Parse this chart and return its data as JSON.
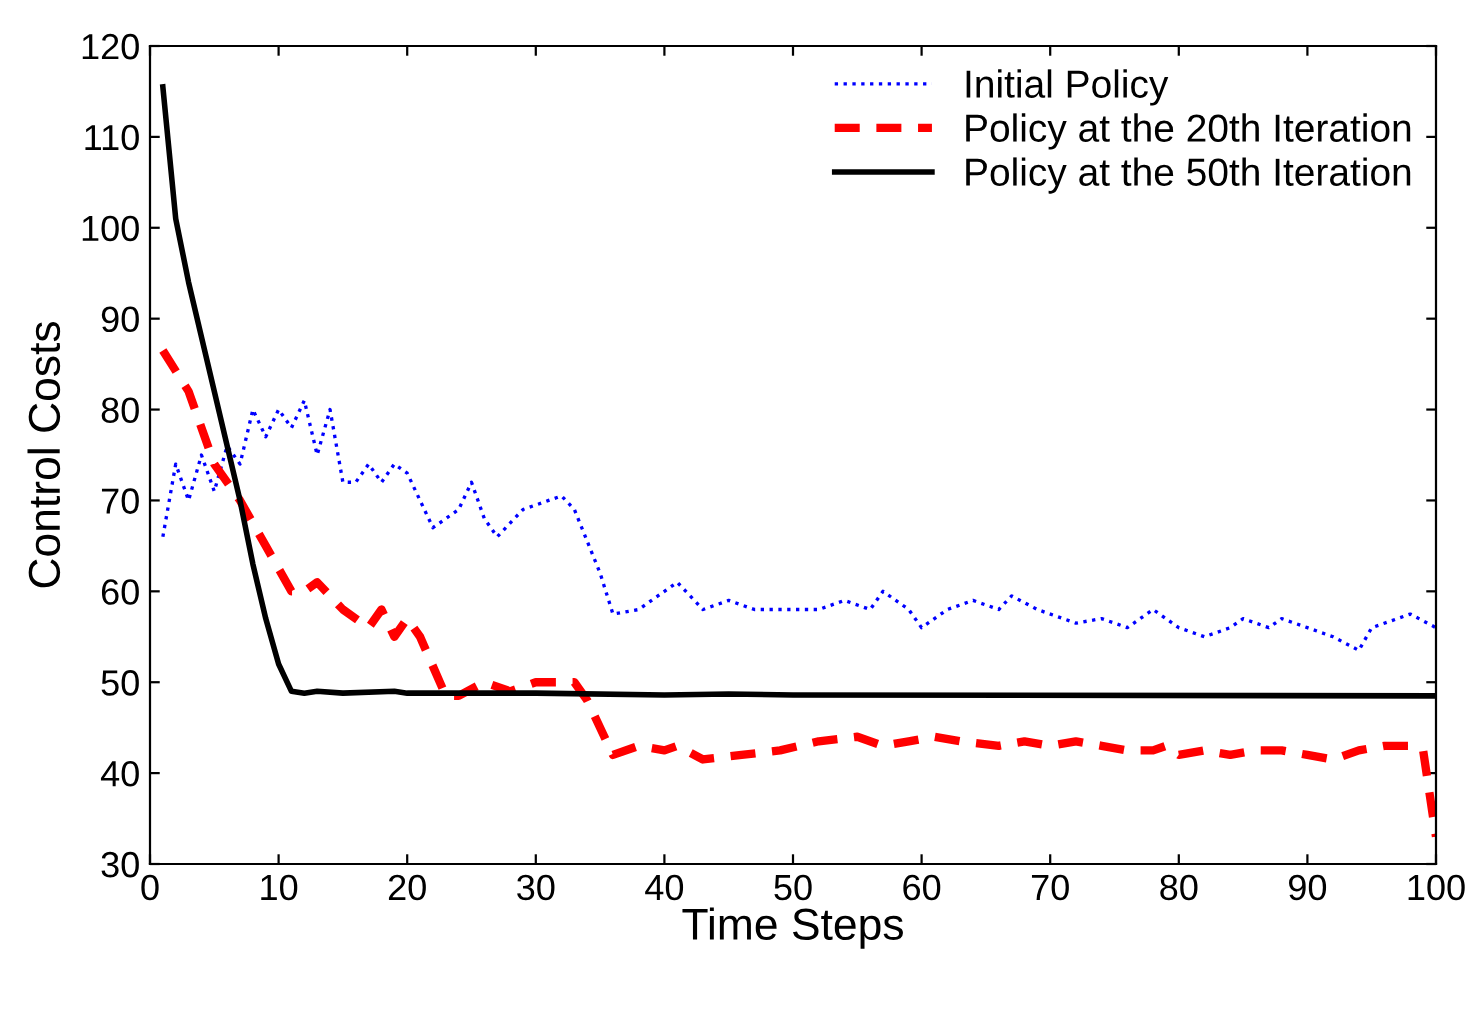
{
  "chart_data": {
    "type": "line",
    "xlabel": "Time Steps",
    "ylabel": "Control Costs",
    "xlim": [
      0,
      100
    ],
    "ylim": [
      30,
      120
    ],
    "xticks": [
      0,
      10,
      20,
      30,
      40,
      50,
      60,
      70,
      80,
      90,
      100
    ],
    "yticks": [
      30,
      40,
      50,
      60,
      70,
      80,
      90,
      100,
      110,
      120
    ],
    "grid": false,
    "legend": "top right",
    "marker": "none",
    "series": [
      {
        "name": "Initial Policy",
        "color": "#0000ff",
        "line_style": "dotted",
        "x": [
          1,
          2,
          3,
          4,
          5,
          6,
          7,
          8,
          9,
          10,
          11,
          12,
          13,
          14,
          15,
          16,
          17,
          18,
          19,
          20,
          22,
          24,
          25,
          26,
          27,
          29,
          31,
          32,
          33,
          35,
          36,
          38,
          41,
          43,
          45,
          47,
          50,
          52,
          54,
          56,
          57,
          59,
          60,
          62,
          64,
          66,
          67,
          69,
          72,
          74,
          76,
          78,
          80,
          82,
          84,
          85,
          87,
          88,
          90,
          92,
          94,
          95,
          97,
          98,
          100
        ],
        "values": [
          66,
          74,
          70,
          75,
          71,
          76,
          74,
          80,
          77,
          80,
          78,
          81,
          75,
          80,
          72,
          72,
          74,
          72,
          74,
          73,
          67,
          69,
          72,
          68,
          66,
          69,
          70,
          70.5,
          69,
          62,
          57.5,
          58,
          61,
          58,
          59,
          58,
          58,
          58,
          59,
          58,
          60,
          58,
          56,
          58,
          59,
          58,
          59.5,
          58,
          56.5,
          57,
          56,
          58,
          56,
          55,
          56,
          57,
          56,
          57,
          56,
          55,
          53.5,
          56,
          57,
          57.5,
          56
        ]
      },
      {
        "name": "Policy at the 20th Iteration",
        "color": "#ff0000",
        "line_style": "dashed",
        "x": [
          1,
          3,
          5,
          7,
          9,
          11,
          12,
          13,
          15,
          17,
          18,
          19,
          20,
          21,
          23,
          24,
          26,
          28,
          30,
          32,
          33,
          34,
          36,
          38,
          40,
          41,
          43,
          46,
          49,
          52,
          55,
          57,
          59,
          61,
          63,
          66,
          68,
          70,
          72,
          74,
          76,
          78,
          79,
          80,
          82,
          84,
          86,
          88,
          90,
          92,
          94,
          96,
          98,
          99,
          100
        ],
        "values": [
          86.5,
          82,
          74,
          70,
          65,
          60,
          60,
          61,
          58,
          56,
          58,
          55,
          57,
          55,
          48.5,
          48.5,
          50,
          49,
          50,
          50,
          50,
          48,
          42,
          43,
          42.5,
          43,
          41.5,
          42,
          42.5,
          43.5,
          44,
          43,
          43.5,
          44,
          43.5,
          43,
          43.5,
          43,
          43.5,
          43,
          42.5,
          42.5,
          43,
          42,
          42.5,
          42,
          42.5,
          42.5,
          42,
          41.5,
          42.5,
          43,
          43,
          42.5,
          33
        ]
      },
      {
        "name": "Policy at the 50th Iteration",
        "color": "#000000",
        "line_style": "solid",
        "x": [
          1,
          2,
          3,
          4,
          5,
          6,
          7,
          8,
          9,
          10,
          11,
          12,
          13,
          15,
          19,
          20,
          30,
          40,
          45,
          50,
          100
        ],
        "values": [
          115.5,
          101,
          94,
          88,
          82,
          76,
          70,
          63,
          57,
          52,
          49,
          48.8,
          49,
          48.8,
          49,
          48.8,
          48.8,
          48.6,
          48.7,
          48.6,
          48.5
        ]
      }
    ]
  }
}
